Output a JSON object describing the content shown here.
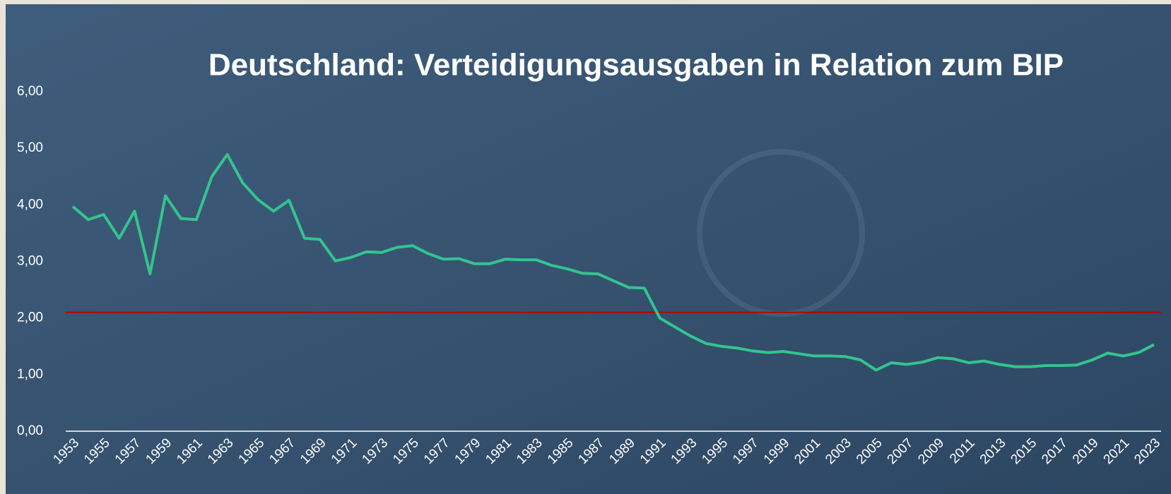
{
  "chart_data": {
    "type": "line",
    "title": "Deutschland: Verteidigungsausgaben in Relation zum BIP",
    "categories": [
      "1953",
      null,
      "1955",
      null,
      "1957",
      null,
      "1959",
      null,
      "1961",
      null,
      "1963",
      null,
      "1965",
      null,
      "1967",
      null,
      "1969",
      null,
      "1971",
      null,
      "1973",
      null,
      "1975",
      null,
      "1977",
      null,
      "1979",
      null,
      "1981",
      null,
      "1983",
      null,
      "1985",
      null,
      "1987",
      null,
      "1989",
      null,
      "1991",
      null,
      "1993",
      null,
      "1995",
      null,
      "1997",
      null,
      "1999",
      null,
      "2001",
      null,
      "2003",
      null,
      "2005",
      null,
      "2007",
      null,
      "2009",
      null,
      "2011",
      null,
      "2013",
      null,
      "2015",
      null,
      "2017",
      null,
      "2019",
      null,
      "2021",
      null,
      "2023"
    ],
    "values": [
      3.97,
      3.74,
      3.83,
      3.41,
      3.89,
      2.78,
      4.16,
      3.76,
      3.74,
      4.5,
      4.89,
      4.39,
      4.09,
      3.89,
      4.08,
      3.41,
      3.39,
      3.01,
      3.07,
      3.17,
      3.16,
      3.25,
      3.28,
      3.14,
      3.04,
      3.05,
      2.96,
      2.96,
      3.04,
      3.03,
      3.03,
      2.93,
      2.87,
      2.79,
      2.78,
      2.66,
      2.54,
      2.53,
      2.0,
      1.84,
      1.68,
      1.55,
      1.5,
      1.47,
      1.42,
      1.39,
      1.41,
      1.37,
      1.33,
      1.33,
      1.32,
      1.26,
      1.08,
      1.21,
      1.18,
      1.22,
      1.3,
      1.28,
      1.21,
      1.24,
      1.18,
      1.14,
      1.14,
      1.16,
      1.16,
      1.17,
      1.26,
      1.38,
      1.33,
      1.39,
      1.53
    ],
    "color": "#33c48e",
    "reference_line": {
      "value": 2.1,
      "color": "#c00000"
    },
    "ylim": [
      0,
      6
    ],
    "yticks": [
      {
        "value": 0,
        "label": "0,00"
      },
      {
        "value": 1,
        "label": "1,00"
      },
      {
        "value": 2,
        "label": "2,00"
      },
      {
        "value": 3,
        "label": "3,00"
      },
      {
        "value": 4,
        "label": "4,00"
      },
      {
        "value": 5,
        "label": "5,00"
      },
      {
        "value": 6,
        "label": "6,00"
      }
    ]
  }
}
